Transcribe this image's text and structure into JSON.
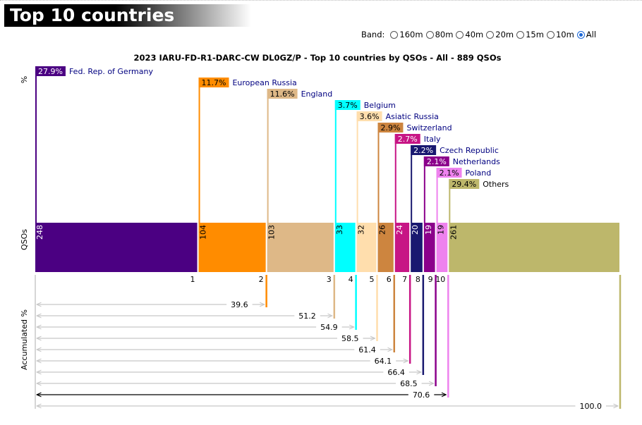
{
  "header": {
    "title": "Top 10 countries"
  },
  "band_selector": {
    "label": "Band:",
    "options": [
      "160m",
      "80m",
      "40m",
      "20m",
      "15m",
      "10m",
      "All"
    ],
    "selected": "All"
  },
  "chart_data": {
    "type": "bar",
    "title": "2023 IARU-FD-R1-DARC-CW DL0GZ/P - Top 10 countries by QSOs - All - 889 QSOs",
    "total_qsos": 889,
    "axis_labels": {
      "percent": "%",
      "qsos": "QSOs",
      "accumulated": "Accumulated %"
    },
    "categories": [
      "Fed. Rep. of Germany",
      "European Russia",
      "England",
      "Belgium",
      "Asiatic Russia",
      "Switzerland",
      "Italy",
      "Czech Republic",
      "Netherlands",
      "Poland",
      "Others"
    ],
    "ranks": [
      "1",
      "2",
      "3",
      "4",
      "5",
      "6",
      "7",
      "8",
      "9",
      "10"
    ],
    "values": [
      248,
      104,
      103,
      33,
      32,
      26,
      24,
      20,
      19,
      19,
      261
    ],
    "percent_labels": [
      "27.9%",
      "11.7%",
      "11.6%",
      "3.7%",
      "3.6%",
      "2.9%",
      "2.7%",
      "2.2%",
      "2.1%",
      "2.1%",
      "29.4%"
    ],
    "accumulated_labels": [
      "39.6",
      "51.2",
      "54.9",
      "58.5",
      "61.4",
      "64.1",
      "66.4",
      "68.5",
      "70.6",
      "100.0"
    ],
    "colors": [
      "#4b0082",
      "#ff8c00",
      "#deb887",
      "#00ffff",
      "#ffdead",
      "#cd853f",
      "#c71585",
      "#191970",
      "#8b008b",
      "#ee82ee",
      "#bdb76b"
    ],
    "label_text_colors": [
      "#ffffff",
      "#000000",
      "#000000",
      "#000000",
      "#000000",
      "#000000",
      "#ffffff",
      "#ffffff",
      "#ffffff",
      "#000000",
      "#000000"
    ],
    "name_colors": [
      "#000080",
      "#000080",
      "#000080",
      "#000080",
      "#000080",
      "#000080",
      "#000080",
      "#000080",
      "#000080",
      "#000080",
      "#000000"
    ]
  }
}
